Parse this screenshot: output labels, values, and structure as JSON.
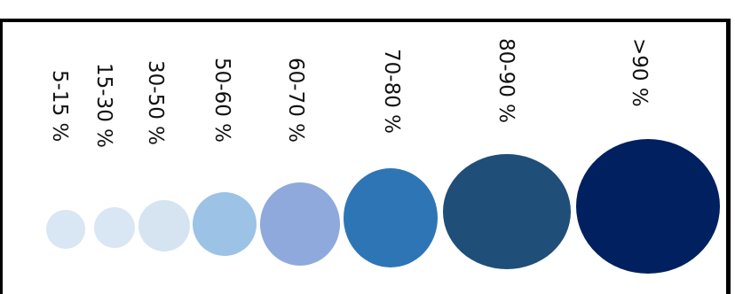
{
  "legend": {
    "items": [
      {
        "label": "5-15 %",
        "color": "#d9e6f3"
      },
      {
        "label": "15-30 %",
        "color": "#d9e6f3"
      },
      {
        "label": "30-50 %",
        "color": "#d6e4f1"
      },
      {
        "label": "50-60 %",
        "color": "#9cc3e6"
      },
      {
        "label": "60-70 %",
        "color": "#8fa9dc"
      },
      {
        "label": "70-80 %",
        "color": "#2e75b6"
      },
      {
        "label": "80-90 %",
        "color": "#1f4e79"
      },
      {
        "label": ">90 %",
        "color": "#002060"
      }
    ]
  }
}
